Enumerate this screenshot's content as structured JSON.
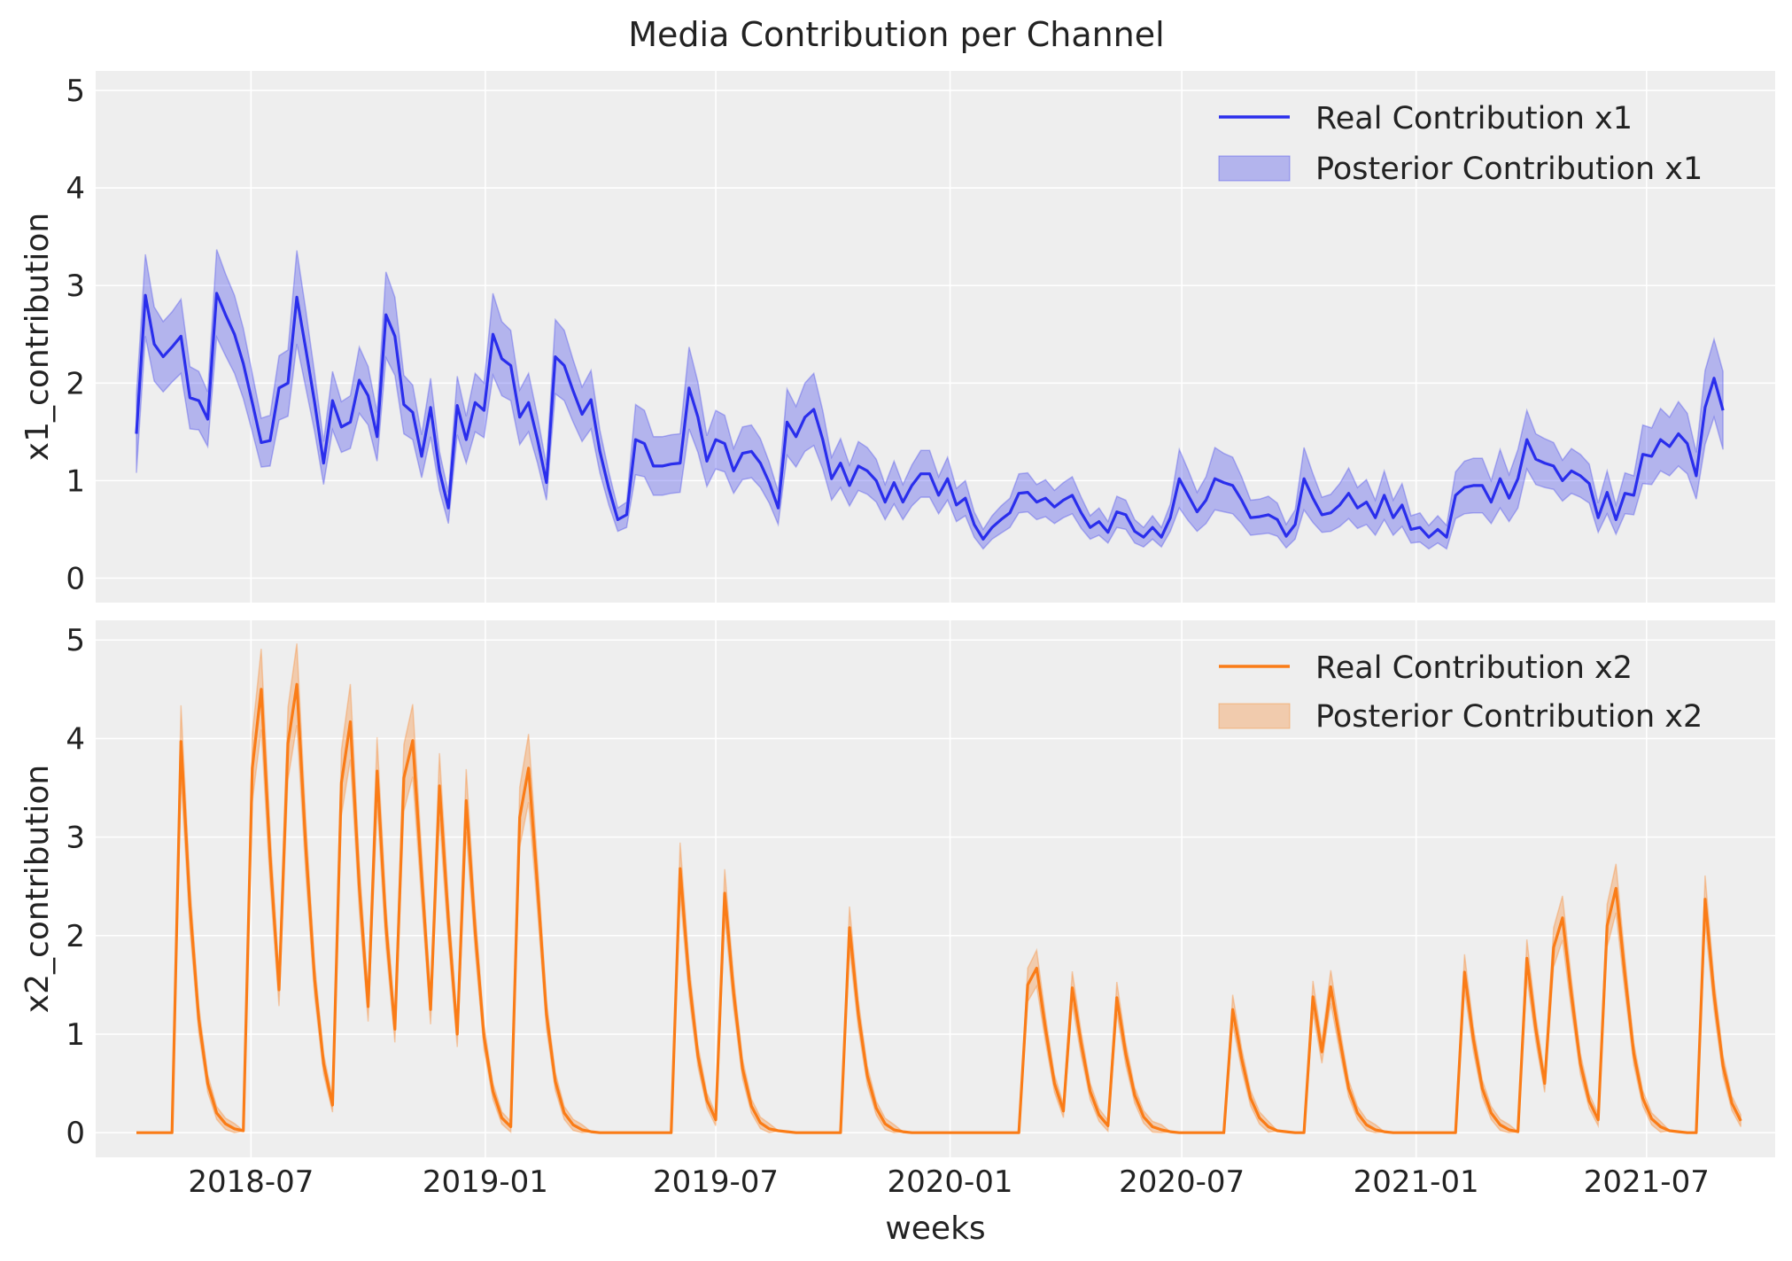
{
  "chart_data": {
    "title": "Media Contribution per Channel",
    "xlabel": "weeks",
    "x_ticks": [
      "2018-07",
      "2019-01",
      "2019-07",
      "2020-01",
      "2020-07",
      "2021-01",
      "2021-07"
    ],
    "x_range": [
      "2018-03-01",
      "2021-10-10"
    ],
    "start_date": "2018-04-02",
    "frequency": "weekly",
    "grid": true,
    "legend_position": "top-right",
    "panels": [
      {
        "type": "line",
        "ylabel": "x1_contribution",
        "ylim": [
          -0.25,
          5.2
        ],
        "y_ticks": [
          "0",
          "1",
          "2",
          "3",
          "4",
          "5"
        ],
        "legend": {
          "line_label": "Real Contribution x1",
          "band_label": "Posterior Contribution x1"
        },
        "line_color": "#2a2eec",
        "band_color": "#2a2eec",
        "values": [
          1.48,
          2.9,
          2.4,
          2.27,
          2.37,
          2.48,
          1.85,
          1.82,
          1.63,
          2.92,
          2.7,
          2.5,
          2.2,
          1.8,
          1.39,
          1.41,
          1.95,
          2.0,
          2.88,
          2.35,
          1.8,
          1.18,
          1.82,
          1.55,
          1.6,
          2.03,
          1.87,
          1.45,
          2.7,
          2.48,
          1.78,
          1.7,
          1.25,
          1.75,
          1.1,
          0.72,
          1.77,
          1.42,
          1.8,
          1.72,
          2.5,
          2.25,
          2.18,
          1.65,
          1.8,
          1.42,
          0.98,
          2.27,
          2.18,
          1.92,
          1.68,
          1.83,
          1.3,
          0.92,
          0.6,
          0.65,
          1.42,
          1.38,
          1.15,
          1.15,
          1.17,
          1.18,
          1.95,
          1.65,
          1.2,
          1.42,
          1.38,
          1.1,
          1.28,
          1.3,
          1.18,
          0.98,
          0.72,
          1.6,
          1.45,
          1.65,
          1.73,
          1.42,
          1.02,
          1.18,
          0.95,
          1.15,
          1.1,
          1.0,
          0.78,
          0.98,
          0.78,
          0.95,
          1.07,
          1.07,
          0.85,
          1.02,
          0.75,
          0.82,
          0.55,
          0.4,
          0.52,
          0.6,
          0.67,
          0.87,
          0.88,
          0.78,
          0.82,
          0.73,
          0.8,
          0.85,
          0.67,
          0.52,
          0.58,
          0.47,
          0.68,
          0.65,
          0.48,
          0.42,
          0.52,
          0.42,
          0.62,
          1.02,
          0.85,
          0.68,
          0.8,
          1.02,
          0.98,
          0.95,
          0.8,
          0.62,
          0.63,
          0.65,
          0.6,
          0.43,
          0.55,
          1.02,
          0.82,
          0.65,
          0.67,
          0.75,
          0.87,
          0.72,
          0.78,
          0.62,
          0.85,
          0.62,
          0.75,
          0.5,
          0.52,
          0.42,
          0.5,
          0.42,
          0.85,
          0.93,
          0.95,
          0.95,
          0.78,
          1.02,
          0.82,
          1.02,
          1.42,
          1.22,
          1.18,
          1.15,
          1.0,
          1.1,
          1.05,
          0.97,
          0.62,
          0.88,
          0.6,
          0.87,
          0.85,
          1.27,
          1.25,
          1.42,
          1.35,
          1.48,
          1.38,
          1.05,
          1.75,
          2.05,
          1.72
        ],
        "band_half_width": [
          0.4,
          0.42,
          0.38,
          0.36,
          0.36,
          0.38,
          0.32,
          0.3,
          0.28,
          0.45,
          0.42,
          0.4,
          0.36,
          0.3,
          0.25,
          0.26,
          0.33,
          0.34,
          0.48,
          0.4,
          0.3,
          0.22,
          0.3,
          0.26,
          0.27,
          0.34,
          0.3,
          0.25,
          0.44,
          0.4,
          0.3,
          0.28,
          0.22,
          0.3,
          0.2,
          0.16,
          0.3,
          0.24,
          0.3,
          0.28,
          0.42,
          0.38,
          0.36,
          0.28,
          0.3,
          0.24,
          0.18,
          0.38,
          0.36,
          0.32,
          0.28,
          0.3,
          0.22,
          0.17,
          0.12,
          0.13,
          0.36,
          0.34,
          0.3,
          0.3,
          0.3,
          0.3,
          0.42,
          0.36,
          0.26,
          0.3,
          0.29,
          0.23,
          0.27,
          0.27,
          0.25,
          0.21,
          0.17,
          0.34,
          0.31,
          0.35,
          0.37,
          0.3,
          0.22,
          0.25,
          0.21,
          0.25,
          0.24,
          0.22,
          0.18,
          0.22,
          0.18,
          0.21,
          0.24,
          0.24,
          0.19,
          0.22,
          0.17,
          0.18,
          0.13,
          0.1,
          0.12,
          0.14,
          0.15,
          0.2,
          0.2,
          0.18,
          0.19,
          0.17,
          0.18,
          0.19,
          0.16,
          0.12,
          0.14,
          0.11,
          0.16,
          0.15,
          0.12,
          0.1,
          0.12,
          0.1,
          0.14,
          0.3,
          0.26,
          0.2,
          0.24,
          0.32,
          0.3,
          0.29,
          0.24,
          0.18,
          0.18,
          0.19,
          0.17,
          0.12,
          0.15,
          0.32,
          0.25,
          0.18,
          0.19,
          0.22,
          0.26,
          0.21,
          0.23,
          0.18,
          0.25,
          0.18,
          0.22,
          0.14,
          0.15,
          0.12,
          0.14,
          0.12,
          0.24,
          0.27,
          0.28,
          0.28,
          0.22,
          0.3,
          0.24,
          0.3,
          0.3,
          0.26,
          0.25,
          0.24,
          0.21,
          0.23,
          0.22,
          0.2,
          0.15,
          0.22,
          0.15,
          0.21,
          0.2,
          0.3,
          0.29,
          0.32,
          0.3,
          0.33,
          0.31,
          0.24,
          0.38,
          0.4,
          0.4
        ]
      },
      {
        "type": "line",
        "ylabel": "x2_contribution",
        "ylim": [
          -0.25,
          5.2
        ],
        "y_ticks": [
          "0",
          "1",
          "2",
          "3",
          "4",
          "5"
        ],
        "legend": {
          "line_label": "Real Contribution x2",
          "band_label": "Posterior Contribution x2"
        },
        "line_color": "#fa7c17",
        "band_color": "#fa7c17",
        "values": [
          0,
          0,
          0,
          0,
          0,
          3.97,
          2.3,
          1.15,
          0.5,
          0.2,
          0.09,
          0.04,
          0.02,
          3.7,
          4.5,
          2.8,
          1.45,
          3.95,
          4.55,
          2.9,
          1.55,
          0.7,
          0.28,
          3.55,
          4.17,
          2.5,
          1.28,
          3.67,
          2.1,
          1.05,
          3.6,
          3.98,
          2.6,
          1.25,
          3.52,
          2.15,
          1.0,
          3.37,
          2.05,
          0.97,
          0.42,
          0.15,
          0.06,
          3.2,
          3.7,
          2.5,
          1.2,
          0.52,
          0.2,
          0.08,
          0.03,
          0.01,
          0,
          0,
          0,
          0,
          0,
          0,
          0,
          0,
          0,
          2.68,
          1.55,
          0.78,
          0.33,
          0.13,
          2.43,
          1.42,
          0.65,
          0.27,
          0.1,
          0.04,
          0.02,
          0.01,
          0,
          0,
          0,
          0,
          0,
          0,
          2.08,
          1.2,
          0.58,
          0.25,
          0.09,
          0.03,
          0.01,
          0,
          0,
          0,
          0,
          0,
          0,
          0,
          0,
          0,
          0,
          0,
          0,
          0,
          1.5,
          1.67,
          1.05,
          0.5,
          0.22,
          1.47,
          0.9,
          0.42,
          0.18,
          0.07,
          1.37,
          0.8,
          0.38,
          0.16,
          0.06,
          0.03,
          0.01,
          0,
          0,
          0,
          0,
          0,
          0,
          1.25,
          0.75,
          0.35,
          0.15,
          0.06,
          0.02,
          0.01,
          0,
          0,
          1.38,
          0.82,
          1.48,
          0.95,
          0.45,
          0.2,
          0.08,
          0.03,
          0.01,
          0,
          0,
          0,
          0,
          0,
          0,
          0,
          0,
          1.63,
          0.95,
          0.45,
          0.2,
          0.08,
          0.03,
          0.01,
          1.77,
          1.05,
          0.5,
          1.88,
          2.18,
          1.4,
          0.7,
          0.32,
          0.13,
          2.1,
          2.48,
          1.6,
          0.8,
          0.35,
          0.14,
          0.06,
          0.02,
          0.01,
          0,
          0,
          2.37,
          1.4,
          0.68,
          0.3,
          0.12
        ],
        "band_rel_width": 0.08
      }
    ]
  }
}
